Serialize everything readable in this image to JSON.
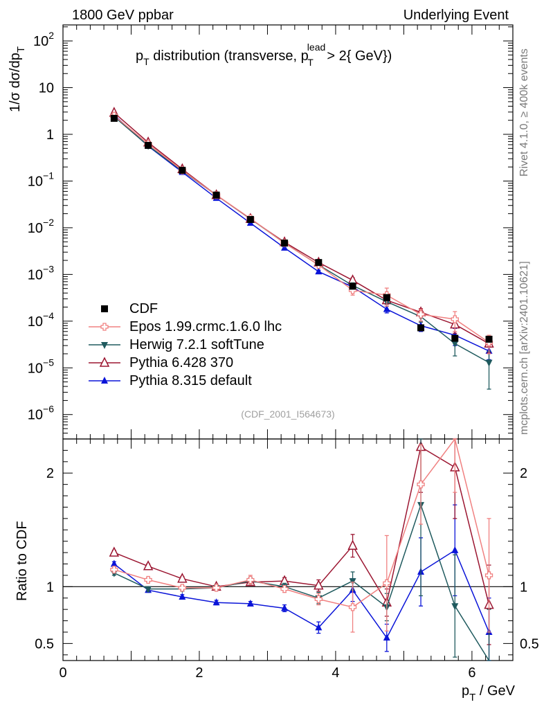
{
  "header": {
    "left": "1800 GeV ppbar",
    "right": "Underlying Event"
  },
  "side_notes": {
    "rivet": "Rivet 4.1.0, ≥ 400k events",
    "mcplots": "mcplots.cern.ch [arXiv:2401.10621]"
  },
  "chart_data": [
    {
      "type": "scatter",
      "panel": "main",
      "title_parts": {
        "p": "p",
        "sub": "T",
        "text": " distribution (transverse, p",
        "sup2": "lead",
        "sub2": "T",
        "tail": " > 2{ GeV})"
      },
      "ylabel": "1/σ  dσ/dp",
      "ylabel_sub": "T",
      "yscale": "log",
      "ylim": [
        3e-07,
        220
      ],
      "xlim": [
        0,
        6.6
      ],
      "y_ticks": [
        {
          "v": 100,
          "base": "10",
          "exp": "2"
        },
        {
          "v": 10,
          "base": "10",
          "exp": ""
        },
        {
          "v": 1,
          "base": "1",
          "exp": ""
        },
        {
          "v": 0.1,
          "base": "10",
          "exp": "−1"
        },
        {
          "v": 0.01,
          "base": "10",
          "exp": "−2"
        },
        {
          "v": 0.001,
          "base": "10",
          "exp": "−3"
        },
        {
          "v": 0.0001,
          "base": "10",
          "exp": "−4"
        },
        {
          "v": 1e-05,
          "base": "10",
          "exp": "−5"
        },
        {
          "v": 1e-06,
          "base": "10",
          "exp": "−6"
        }
      ],
      "x": [
        0.75,
        1.25,
        1.75,
        2.25,
        2.75,
        3.25,
        3.75,
        4.25,
        4.75,
        5.25,
        5.75,
        6.25
      ],
      "watermark": "(CDF_2001_I564673)",
      "series": [
        {
          "name": "CDF",
          "color": "#000000",
          "marker": "square",
          "values": [
            2.2,
            0.58,
            0.17,
            0.05,
            0.015,
            0.0047,
            0.0018,
            0.00056,
            0.00032,
            7.2e-05,
            4.3e-05,
            4.1e-05
          ],
          "errors": [
            0,
            0,
            0,
            0,
            0,
            0,
            0,
            0,
            0,
            0,
            0,
            0
          ]
        },
        {
          "name": "Epos 1.99.crmc.1.6.0 lhc",
          "color": "#f08080",
          "marker": "cross",
          "values": [
            2.5,
            0.62,
            0.17,
            0.05,
            0.0158,
            0.0047,
            0.0016,
            0.00046,
            0.00036,
            0.00014,
            0.00011,
            3.5e-05
          ],
          "errors": [
            0,
            0,
            0,
            0,
            0,
            0,
            0.00012,
            0.0001,
            0.00015,
            4e-05,
            5e-05,
            1.5e-05
          ]
        },
        {
          "name": "Herwig 7.2.1 softTune",
          "color": "#1f5a5e",
          "marker": "triangle-down",
          "values": [
            2.4,
            0.57,
            0.165,
            0.05,
            0.0156,
            0.0047,
            0.0016,
            0.00058,
            0.00026,
            0.000125,
            3.3e-05,
            1.3e-05
          ],
          "errors": [
            0,
            0,
            0,
            0,
            0,
            0,
            0.00012,
            8e-05,
            5e-05,
            3e-05,
            1.5e-05,
            9.5e-06
          ]
        },
        {
          "name": "Pythia 6.428 370",
          "color": "#9b1530",
          "marker": "triangle-open",
          "values": [
            2.9,
            0.67,
            0.18,
            0.05,
            0.0155,
            0.0049,
            0.0018,
            0.00075,
            0.00028,
            0.000155,
            8.5e-05,
            3.3e-05
          ],
          "errors": [
            0,
            0,
            0,
            0,
            0,
            0,
            0.00012,
            0.0001,
            5e-05,
            3e-05,
            3e-05,
            1.2e-05
          ]
        },
        {
          "name": "Pythia 8.315 default",
          "color": "#0a14d8",
          "marker": "triangle-up",
          "values": [
            2.6,
            0.56,
            0.155,
            0.043,
            0.0126,
            0.0037,
            0.00115,
            0.00054,
            0.00018,
            8e-05,
            5e-05,
            2.3e-05
          ],
          "errors": [
            0,
            0,
            0,
            0,
            0,
            0,
            8e-05,
            8e-05,
            3e-05,
            2e-05,
            2e-05,
            8e-06
          ]
        }
      ]
    },
    {
      "type": "line",
      "panel": "ratio",
      "ylabel": "Ratio to CDF",
      "xlabel": "p",
      "xlabel_sub": "T",
      "xlabel_tail": " / GeV",
      "ylim": [
        0.35,
        2.3
      ],
      "xlim": [
        0,
        6.6
      ],
      "y_ticks": [
        {
          "v": 0.5,
          "label": "0.5"
        },
        {
          "v": 1,
          "label": "1"
        },
        {
          "v": 2,
          "label": "2"
        }
      ],
      "x_ticks": [
        {
          "v": 0,
          "label": "0"
        },
        {
          "v": 2,
          "label": "2"
        },
        {
          "v": 4,
          "label": "4"
        },
        {
          "v": 6,
          "label": "6"
        }
      ],
      "x": [
        0.75,
        1.25,
        1.75,
        2.25,
        2.75,
        3.25,
        3.75,
        4.25,
        4.75,
        5.25,
        5.75,
        6.25
      ],
      "series": [
        {
          "name": "Epos 1.99.crmc.1.6.0 lhc",
          "color": "#f08080",
          "marker": "cross",
          "values": [
            1.15,
            1.06,
            0.99,
            0.99,
            1.06,
            0.98,
            0.89,
            0.82,
            1.03,
            1.9,
            2.33,
            1.1
          ],
          "errors": [
            0.02,
            0.02,
            0.02,
            0.02,
            0.04,
            0.03,
            0.05,
            0.22,
            0.42,
            0.35,
            0.5,
            0.5
          ]
        },
        {
          "name": "Herwig 7.2.1 softTune",
          "color": "#1f5a5e",
          "marker": "triangle-down",
          "values": [
            1.12,
            0.98,
            0.98,
            0.99,
            1.05,
            1.0,
            0.9,
            1.05,
            0.82,
            1.72,
            0.83,
            0.3
          ],
          "errors": [
            0.02,
            0.02,
            0.02,
            0.02,
            0.03,
            0.03,
            0.05,
            0.08,
            0.12,
            0.8,
            0.45,
            0.5
          ]
        },
        {
          "name": "Pythia 6.428 370",
          "color": "#9b1530",
          "marker": "triangle-open",
          "values": [
            1.3,
            1.18,
            1.07,
            1.0,
            1.04,
            1.05,
            1.01,
            1.36,
            0.86,
            2.23,
            2.05,
            0.84
          ],
          "errors": [
            0.02,
            0.02,
            0.02,
            0.02,
            0.03,
            0.03,
            0.05,
            0.1,
            0.12,
            0.4,
            0.45,
            0.35
          ]
        },
        {
          "name": "Pythia 8.315 default",
          "color": "#0a14d8",
          "marker": "triangle-up",
          "values": [
            1.2,
            0.97,
            0.91,
            0.86,
            0.85,
            0.81,
            0.64,
            0.97,
            0.55,
            1.13,
            1.32,
            0.6
          ],
          "errors": [
            0.02,
            0.02,
            0.02,
            0.02,
            0.02,
            0.03,
            0.05,
            0.1,
            0.12,
            0.3,
            0.4,
            0.3
          ]
        }
      ]
    }
  ]
}
